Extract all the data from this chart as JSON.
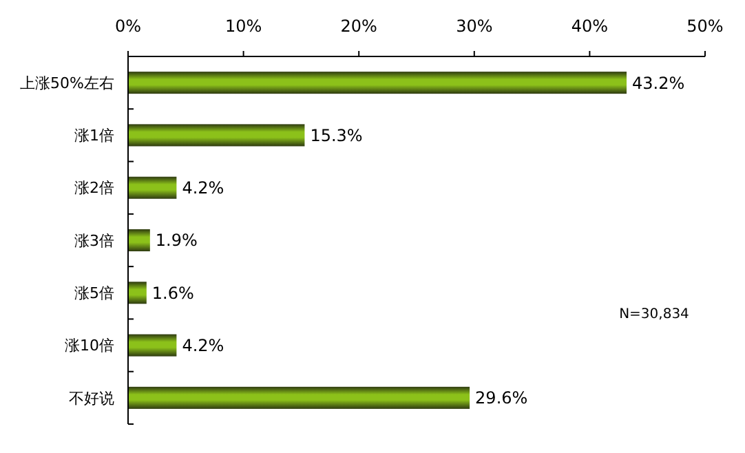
{
  "chart_data": {
    "type": "bar",
    "orientation": "horizontal",
    "categories": [
      "上涨50%左右",
      "涨1倍",
      "涨2倍",
      "涨3倍",
      "涨5倍",
      "涨10倍",
      "不好说"
    ],
    "values": [
      43.2,
      15.3,
      4.2,
      1.9,
      1.6,
      4.2,
      29.6
    ],
    "value_labels": [
      "43.2%",
      "15.3%",
      "4.2%",
      "1.9%",
      "1.6%",
      "4.2%",
      "29.6%"
    ],
    "color": "#8cc11a",
    "xlim": [
      0,
      50
    ],
    "xticks": [
      {
        "value": 0,
        "label": "0%"
      },
      {
        "value": 10,
        "label": "10%"
      },
      {
        "value": 20,
        "label": "20%"
      },
      {
        "value": 30,
        "label": "30%"
      },
      {
        "value": 40,
        "label": "40%"
      },
      {
        "value": 50,
        "label": "50%"
      }
    ],
    "grid": false,
    "annotations": [
      "N=30,834"
    ]
  }
}
